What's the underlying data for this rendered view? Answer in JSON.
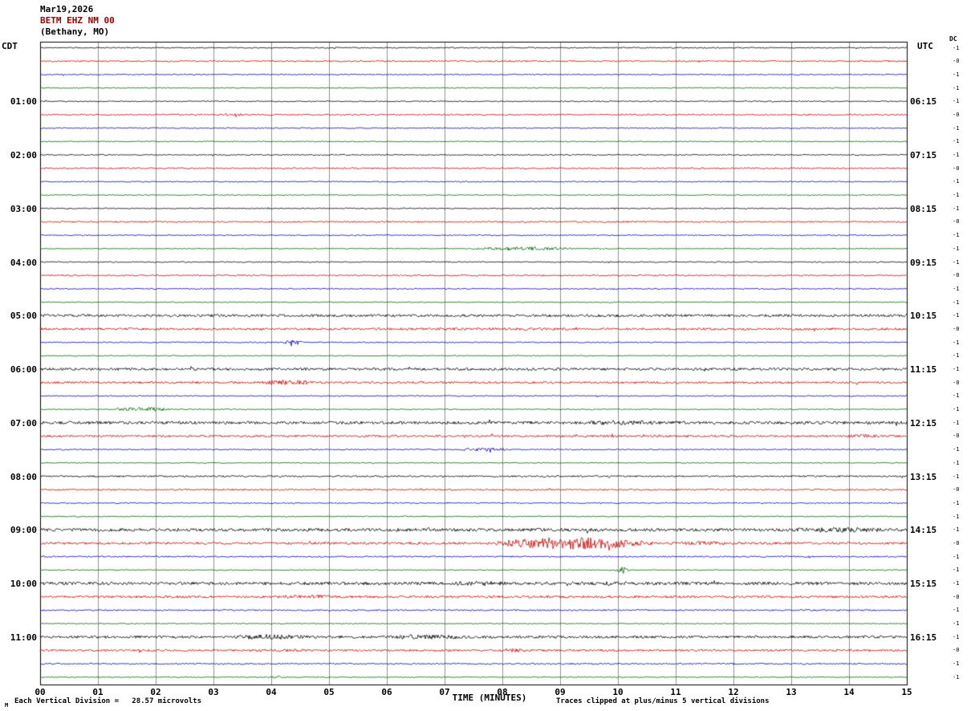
{
  "header": {
    "date": "Mar19,2026",
    "station": "BETM EHZ NM 00",
    "location": "(Bethany, MO)"
  },
  "axes": {
    "left_label": "CDT",
    "right_label": "UTC",
    "dc_label": "DC",
    "xlabel": "TIME (MINUTES)",
    "left_times": [
      "01:00",
      "02:00",
      "03:00",
      "04:00",
      "05:00",
      "06:00",
      "07:00",
      "08:00",
      "09:00",
      "10:00",
      "11:00"
    ],
    "right_times": [
      "06:15",
      "07:15",
      "08:15",
      "09:15",
      "10:15",
      "11:15",
      "12:15",
      "13:15",
      "14:15",
      "15:15",
      "16:15"
    ],
    "x_ticks": [
      "00",
      "01",
      "02",
      "03",
      "04",
      "05",
      "06",
      "07",
      "08",
      "09",
      "10",
      "11",
      "12",
      "13",
      "14",
      "15"
    ],
    "dc_values": [
      "-1",
      "-0",
      "-1",
      "-1",
      "-1",
      "-0",
      "-1",
      "-1",
      "-1",
      "-0",
      "-1",
      "-1",
      "-1",
      "-0",
      "-1",
      "-1",
      "-1",
      "-0",
      "-1",
      "-1",
      "-1",
      "-0",
      "-1",
      "-1",
      "-1",
      "-0",
      "-1",
      "-1",
      "-1",
      "-0",
      "-1",
      "-1",
      "-1",
      "-0",
      "-1",
      "-1",
      "-1",
      "-0",
      "-1",
      "-1",
      "-1",
      "-0",
      "-1",
      "-1",
      "-1",
      "-0",
      "-1",
      "-1"
    ]
  },
  "footer": {
    "scale_note": "Each Vertical Division =   28.57 microvolts",
    "clip_note": "Traces clipped at plus/minus 5 vertical divisions",
    "corner_mark": "M"
  },
  "chart_data": {
    "type": "line",
    "title": "BETM EHZ NM 00 (Bethany, MO) helicorder, Mar19,2026",
    "xlabel": "TIME (MINUTES)",
    "x_range_minutes": [
      0,
      15
    ],
    "rows": 48,
    "minutes_per_row": 15,
    "start_time_cdt": "00:00",
    "utc_offset_hours": 5,
    "trace_colors": [
      "#000000",
      "#cc0000",
      "#0000bb",
      "#006600"
    ],
    "grid_color": "#909090",
    "border_color": "#000000",
    "base_noise": [
      0.7,
      0.9,
      0.7,
      0.6
    ],
    "noise_overrides": {
      "20": 1.6,
      "21": 1.4,
      "24": 1.6,
      "25": 1.3,
      "28": 1.8,
      "29": 1.3,
      "32": 1.0,
      "33": 1.0,
      "36": 1.9,
      "37": 1.5,
      "38": 0.9,
      "40": 1.9,
      "41": 1.4,
      "42": 0.9,
      "44": 1.6,
      "45": 1.3,
      "46": 0.9
    },
    "events": [
      {
        "row": 5,
        "start": 3.1,
        "end": 3.6,
        "amp": 1.8
      },
      {
        "row": 15,
        "start": 7.4,
        "end": 9.3,
        "amp": 2.4
      },
      {
        "row": 21,
        "start": 5.0,
        "end": 11.0,
        "amp": 1.6
      },
      {
        "row": 22,
        "start": 4.2,
        "end": 4.55,
        "amp": 3.5
      },
      {
        "row": 25,
        "start": 3.6,
        "end": 5.0,
        "amp": 3.0
      },
      {
        "row": 27,
        "start": 1.3,
        "end": 2.3,
        "amp": 2.8
      },
      {
        "row": 28,
        "start": 9.2,
        "end": 11.0,
        "amp": 3.0
      },
      {
        "row": 29,
        "start": 13.9,
        "end": 14.6,
        "amp": 2.4
      },
      {
        "row": 30,
        "start": 7.2,
        "end": 8.2,
        "amp": 2.2
      },
      {
        "row": 36,
        "start": 12.6,
        "end": 15.0,
        "amp": 3.2
      },
      {
        "row": 37,
        "start": 7.8,
        "end": 10.6,
        "amp": 7.5
      },
      {
        "row": 37,
        "start": 10.6,
        "end": 12.4,
        "amp": 2.4
      },
      {
        "row": 39,
        "start": 9.95,
        "end": 10.2,
        "amp": 4.5
      },
      {
        "row": 40,
        "start": 6.9,
        "end": 8.3,
        "amp": 3.0
      },
      {
        "row": 40,
        "start": 9.3,
        "end": 10.5,
        "amp": 2.6
      },
      {
        "row": 41,
        "start": 3.8,
        "end": 5.5,
        "amp": 2.4
      },
      {
        "row": 44,
        "start": 3.2,
        "end": 4.8,
        "amp": 3.4
      },
      {
        "row": 44,
        "start": 5.6,
        "end": 7.8,
        "amp": 2.8
      },
      {
        "row": 45,
        "start": 3.1,
        "end": 5.2,
        "amp": 2.0
      },
      {
        "row": 45,
        "start": 7.9,
        "end": 8.5,
        "amp": 2.6
      },
      {
        "row": 47,
        "start": 3.8,
        "end": 4.3,
        "amp": 1.5
      }
    ]
  }
}
